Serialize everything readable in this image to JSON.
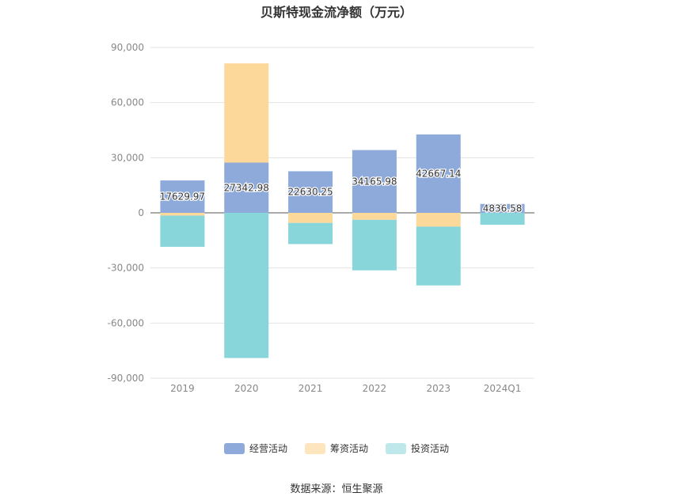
{
  "chart_data": {
    "type": "bar",
    "stacked": true,
    "title": "贝斯特现金流净额（万元）",
    "categories": [
      "2019",
      "2020",
      "2021",
      "2022",
      "2023",
      "2024Q1"
    ],
    "series": [
      {
        "name": "经营活动",
        "color": "#8eaadb",
        "values": [
          17629.97,
          27342.98,
          22630.25,
          34165.98,
          42667.14,
          4836.58
        ]
      },
      {
        "name": "筹资活动",
        "color": "#fdd89b",
        "values": [
          -1500,
          54000,
          -5500,
          -3800,
          -7500,
          0
        ]
      },
      {
        "name": "投资活动",
        "color": "#88d6d9",
        "values": [
          -17000,
          -79000,
          -11500,
          -27500,
          -32000,
          -6500
        ]
      }
    ],
    "data_labels": [
      "17629.97",
      "27342.98",
      "22630.25",
      "34165.98",
      "42667.14",
      "4836.58"
    ],
    "ylim": [
      -90000,
      90000
    ],
    "yticks": [
      90000,
      60000,
      30000,
      0,
      -30000,
      -60000,
      -90000
    ],
    "ytick_labels": [
      "90,000",
      "60,000",
      "30,000",
      "0",
      "-30,000",
      "-60,000",
      "-90,000"
    ],
    "grid": true,
    "legend_position": "bottom",
    "source": "数据来源：恒生聚源"
  }
}
